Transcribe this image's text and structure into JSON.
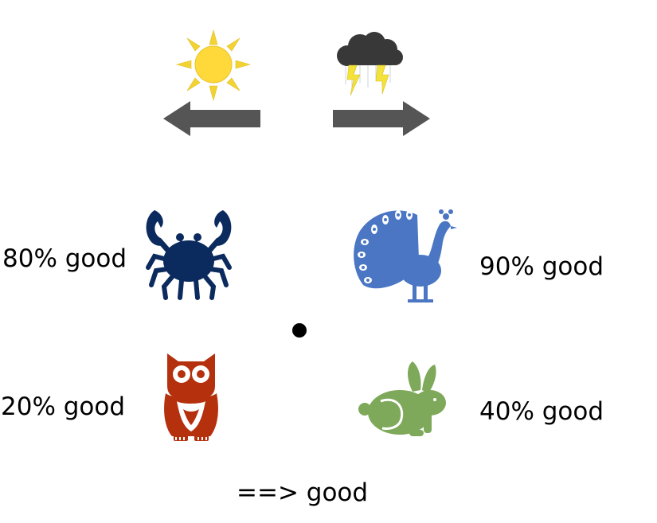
{
  "weather": {
    "left_icon": "sun-icon",
    "right_icon": "storm-cloud-icon",
    "left_arrow_icon": "arrow-left-icon",
    "right_arrow_icon": "arrow-right-icon"
  },
  "animals": [
    {
      "icon": "crab-icon",
      "label": "80% good",
      "color": "#0b2a5e"
    },
    {
      "icon": "peacock-icon",
      "label": "90% good",
      "color": "#4a76c4"
    },
    {
      "icon": "owl-icon",
      "label": "20% good",
      "color": "#b5300d"
    },
    {
      "icon": "rabbit-icon",
      "label": "40% good",
      "color": "#7ea95a"
    }
  ],
  "center_marker": "dot",
  "footer": {
    "text": "==> good"
  },
  "colors": {
    "arrow": "#555555",
    "sun": "#ffd83a",
    "sun_rays": "#f3d233",
    "cloud": "#3a3a3a",
    "lightning": "#f4e23a"
  }
}
